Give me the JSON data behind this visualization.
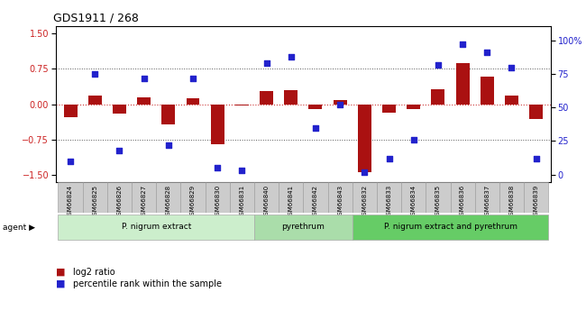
{
  "title": "GDS1911 / 268",
  "samples": [
    "GSM66824",
    "GSM66825",
    "GSM66826",
    "GSM66827",
    "GSM66828",
    "GSM66829",
    "GSM66830",
    "GSM66831",
    "GSM66840",
    "GSM66841",
    "GSM66842",
    "GSM66843",
    "GSM66832",
    "GSM66833",
    "GSM66834",
    "GSM66835",
    "GSM66836",
    "GSM66837",
    "GSM66838",
    "GSM66839"
  ],
  "log2_ratio": [
    -0.28,
    0.18,
    -0.2,
    0.15,
    -0.42,
    0.12,
    -0.85,
    -0.03,
    0.28,
    0.3,
    -0.1,
    0.08,
    -1.45,
    -0.18,
    -0.1,
    0.32,
    0.88,
    0.58,
    0.18,
    -0.32
  ],
  "percentile": [
    10,
    75,
    18,
    72,
    22,
    72,
    5,
    3,
    83,
    88,
    35,
    52,
    2,
    12,
    26,
    82,
    97,
    91,
    80,
    12
  ],
  "bar_color": "#aa1111",
  "dot_color": "#2222cc",
  "yticks_left": [
    -1.5,
    -0.75,
    0,
    0.75,
    1.5
  ],
  "yticks_right": [
    0,
    25,
    50,
    75,
    100
  ],
  "ylim_left": [
    -1.65,
    1.65
  ],
  "group_data": [
    [
      0,
      7,
      "P. nigrum extract",
      "#cceecc"
    ],
    [
      8,
      11,
      "pyrethrum",
      "#aaddaa"
    ],
    [
      12,
      19,
      "P. nigrum extract and pyrethrum",
      "#66cc66"
    ]
  ],
  "legend_log2": "log2 ratio",
  "legend_pct": "percentile rank within the sample"
}
